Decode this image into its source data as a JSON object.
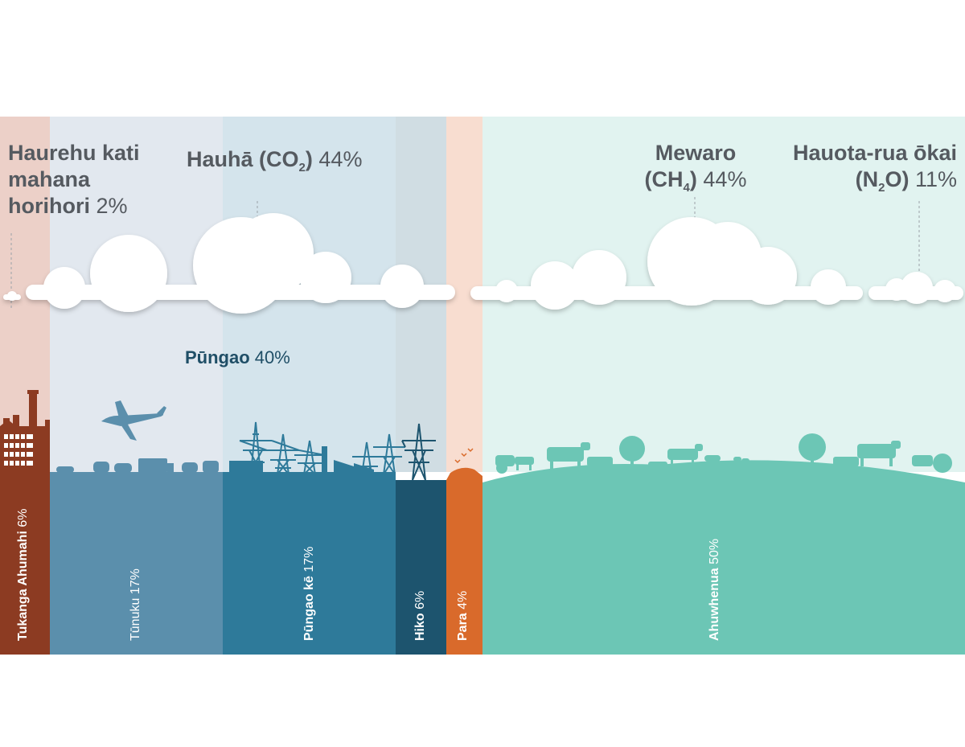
{
  "gases": {
    "synthetic": {
      "line1": "Haurehu kati",
      "line2": "mahana",
      "line3": "horihori",
      "percent": "2%"
    },
    "co2": {
      "name": "Hauhā",
      "formula_open": "(CO",
      "formula_sub": "2",
      "formula_close": ")",
      "percent": "44%"
    },
    "ch4": {
      "name": "Mewaro",
      "formula_open": "(CH",
      "formula_sub": "4",
      "formula_close": ")",
      "percent": "44%"
    },
    "n2o": {
      "name": "Hauota-rua ōkai",
      "formula_open": "(N",
      "formula_sub": "2",
      "formula_close": "O)",
      "percent": "11%"
    }
  },
  "fossil_fuels": {
    "name": "Pūngao",
    "percent": "40%"
  },
  "sectors": [
    {
      "name": "Tukanga Ahumahi",
      "percent": "6%",
      "color": "#8c3b22"
    },
    {
      "name": "Tūnuku",
      "percent": "17%",
      "color": "#5b8fac"
    },
    {
      "name": "Pūngao kē",
      "percent": "17%",
      "color": "#2e7a9a"
    },
    {
      "name": "Hiko",
      "percent": "6%",
      "color": "#1d546e"
    },
    {
      "name": "Para",
      "percent": "4%",
      "color": "#d96a2b"
    },
    {
      "name": "Ahuwhenua",
      "percent": "50%",
      "color": "#6cc6b5"
    }
  ],
  "colors": {
    "text_gray": "#555a60",
    "fossil_text": "#1f4e66",
    "bg_synthetic": "#ecd0c8",
    "bg_co2_transport": "#e2e8ef",
    "bg_co2_energy": "#d4e4ec",
    "bg_co2_electric": "#d0dde3",
    "bg_waste": "#f8ddd0",
    "bg_methane": "#e1f3f0"
  }
}
